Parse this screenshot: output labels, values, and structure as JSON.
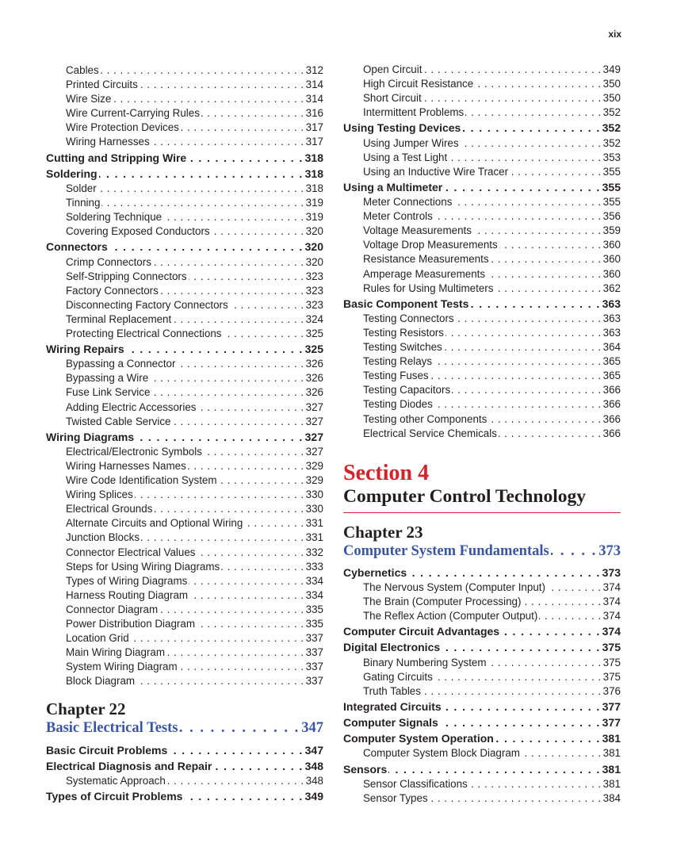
{
  "folio": "xix",
  "left_column": {
    "entries_top": [
      {
        "t": "s",
        "label": "Cables",
        "page": "312"
      },
      {
        "t": "s",
        "label": "Printed Circuits",
        "page": "314"
      },
      {
        "t": "s",
        "label": "Wire Size",
        "page": "314"
      },
      {
        "t": "s",
        "label": "Wire Current-Carrying Rules",
        "page": "316"
      },
      {
        "t": "s",
        "label": "Wire Protection Devices",
        "page": "317"
      },
      {
        "t": "s",
        "label": "Wiring Harnesses",
        "page": "317"
      },
      {
        "t": "h",
        "label": "Cutting and Stripping Wire",
        "page": "318"
      },
      {
        "t": "h",
        "label": "Soldering",
        "page": "318"
      },
      {
        "t": "s",
        "label": "Solder",
        "page": "318"
      },
      {
        "t": "s",
        "label": "Tinning",
        "page": "319"
      },
      {
        "t": "s",
        "label": "Soldering Technique",
        "page": "319"
      },
      {
        "t": "s",
        "label": "Covering Exposed Conductors",
        "page": "320"
      },
      {
        "t": "h",
        "label": "Connectors",
        "page": "320"
      },
      {
        "t": "s",
        "label": "Crimp Connectors",
        "page": "320"
      },
      {
        "t": "s",
        "label": "Self-Stripping Connectors",
        "page": "323"
      },
      {
        "t": "s",
        "label": "Factory Connectors",
        "page": "323"
      },
      {
        "t": "s",
        "label": "Disconnecting Factory Connectors",
        "page": "323"
      },
      {
        "t": "s",
        "label": "Terminal Replacement",
        "page": "324"
      },
      {
        "t": "s",
        "label": "Protecting Electrical Connections",
        "page": "325"
      },
      {
        "t": "h",
        "label": "Wiring Repairs",
        "page": "325"
      },
      {
        "t": "s",
        "label": "Bypassing a Connector",
        "page": "326"
      },
      {
        "t": "s",
        "label": "Bypassing a Wire",
        "page": "326"
      },
      {
        "t": "s",
        "label": "Fuse Link Service",
        "page": "326"
      },
      {
        "t": "s",
        "label": "Adding Electric Accessories",
        "page": "327"
      },
      {
        "t": "s",
        "label": "Twisted Cable Service",
        "page": "327"
      },
      {
        "t": "h",
        "label": "Wiring Diagrams",
        "page": "327"
      },
      {
        "t": "s",
        "label": "Electrical/Electronic Symbols",
        "page": "327"
      },
      {
        "t": "s",
        "label": "Wiring Harnesses Names",
        "page": "329"
      },
      {
        "t": "s",
        "label": "Wire Code Identification System",
        "page": "329"
      },
      {
        "t": "s",
        "label": "Wiring Splices",
        "page": "330"
      },
      {
        "t": "s",
        "label": "Electrical Grounds",
        "page": "330"
      },
      {
        "t": "s",
        "label": "Alternate Circuits and Optional Wiring",
        "page": "331"
      },
      {
        "t": "s",
        "label": "Junction Blocks",
        "page": "331"
      },
      {
        "t": "s",
        "label": "Connector Electrical Values",
        "page": "332"
      },
      {
        "t": "s",
        "label": "Steps for Using Wiring Diagrams",
        "page": "333"
      },
      {
        "t": "s",
        "label": "Types of Wiring Diagrams",
        "page": "334"
      },
      {
        "t": "s",
        "label": "Harness Routing Diagram",
        "page": "334"
      },
      {
        "t": "s",
        "label": "Connector Diagram",
        "page": "335"
      },
      {
        "t": "s",
        "label": "Power Distribution Diagram",
        "page": "335"
      },
      {
        "t": "s",
        "label": "Location Grid",
        "page": "337"
      },
      {
        "t": "s",
        "label": "Main Wiring Diagram",
        "page": "337"
      },
      {
        "t": "s",
        "label": "System Wiring Diagram",
        "page": "337"
      },
      {
        "t": "s",
        "label": "Block Diagram",
        "page": "337"
      }
    ],
    "chapter": {
      "label": "Chapter 22",
      "title": "Basic Electrical Tests",
      "page": "347"
    },
    "entries_bottom": [
      {
        "t": "h",
        "label": "Basic Circuit Problems",
        "page": "347"
      },
      {
        "t": "h",
        "label": "Electrical Diagnosis and Repair",
        "page": "348"
      },
      {
        "t": "s",
        "label": "Systematic Approach",
        "page": "348"
      },
      {
        "t": "h",
        "label": "Types of Circuit Problems",
        "page": "349"
      }
    ]
  },
  "right_column": {
    "entries_top": [
      {
        "t": "s",
        "label": "Open Circuit",
        "page": "349"
      },
      {
        "t": "s",
        "label": "High Circuit Resistance",
        "page": "350"
      },
      {
        "t": "s",
        "label": "Short Circuit",
        "page": "350"
      },
      {
        "t": "s",
        "label": "Intermittent Problems",
        "page": "352"
      },
      {
        "t": "h",
        "label": "Using Testing Devices",
        "page": "352"
      },
      {
        "t": "s",
        "label": "Using Jumper Wires",
        "page": "352"
      },
      {
        "t": "s",
        "label": "Using a Test Light",
        "page": "353"
      },
      {
        "t": "s",
        "label": "Using an Inductive Wire Tracer",
        "page": "355"
      },
      {
        "t": "h",
        "label": "Using a Multimeter",
        "page": "355"
      },
      {
        "t": "s",
        "label": "Meter Connections",
        "page": "355"
      },
      {
        "t": "s",
        "label": "Meter Controls",
        "page": "356"
      },
      {
        "t": "s",
        "label": "Voltage Measurements",
        "page": "359"
      },
      {
        "t": "s",
        "label": "Voltage Drop Measurements",
        "page": "360"
      },
      {
        "t": "s",
        "label": "Resistance Measurements",
        "page": "360"
      },
      {
        "t": "s",
        "label": "Amperage Measurements",
        "page": "360"
      },
      {
        "t": "s",
        "label": "Rules for Using Multimeters",
        "page": "362"
      },
      {
        "t": "h",
        "label": "Basic Component Tests",
        "page": "363"
      },
      {
        "t": "s",
        "label": "Testing Connectors",
        "page": "363"
      },
      {
        "t": "s",
        "label": "Testing Resistors",
        "page": "363"
      },
      {
        "t": "s",
        "label": "Testing Switches",
        "page": "364"
      },
      {
        "t": "s",
        "label": "Testing Relays",
        "page": "365"
      },
      {
        "t": "s",
        "label": "Testing Fuses",
        "page": "365"
      },
      {
        "t": "s",
        "label": "Testing Capacitors",
        "page": "366"
      },
      {
        "t": "s",
        "label": "Testing Diodes",
        "page": "366"
      },
      {
        "t": "s",
        "label": "Testing other Components",
        "page": "366"
      },
      {
        "t": "s",
        "label": "Electrical Service Chemicals",
        "page": "366"
      }
    ],
    "section": {
      "label": "Section 4",
      "title": "Computer Control Technology"
    },
    "chapter": {
      "label": "Chapter 23",
      "title": "Computer System Fundamentals",
      "page": "373"
    },
    "entries_bottom": [
      {
        "t": "h",
        "label": "Cybernetics",
        "page": "373"
      },
      {
        "t": "s",
        "label": "The Nervous System (Computer Input)",
        "page": "374"
      },
      {
        "t": "s",
        "label": "The Brain (Computer Processing)",
        "page": "374"
      },
      {
        "t": "s",
        "label": "The Reflex Action (Computer Output)",
        "page": "374"
      },
      {
        "t": "h",
        "label": "Computer Circuit Advantages",
        "page": "374"
      },
      {
        "t": "h",
        "label": "Digital Electronics",
        "page": "375"
      },
      {
        "t": "s",
        "label": "Binary Numbering System",
        "page": "375"
      },
      {
        "t": "s",
        "label": "Gating Circuits",
        "page": "375"
      },
      {
        "t": "s",
        "label": "Truth Tables",
        "page": "376"
      },
      {
        "t": "h",
        "label": "Integrated Circuits",
        "page": "377"
      },
      {
        "t": "h",
        "label": "Computer Signals",
        "page": "377"
      },
      {
        "t": "h",
        "label": "Computer System Operation",
        "page": "381"
      },
      {
        "t": "s",
        "label": "Computer System Block Diagram",
        "page": "381"
      },
      {
        "t": "h",
        "label": "Sensors",
        "page": "381"
      },
      {
        "t": "s",
        "label": "Sensor Classifications",
        "page": "381"
      },
      {
        "t": "s",
        "label": "Sensor Types",
        "page": "384"
      }
    ]
  },
  "colors": {
    "section_red": "#d2232a",
    "chapter_blue": "#3a55a4",
    "text": "#231f20"
  }
}
